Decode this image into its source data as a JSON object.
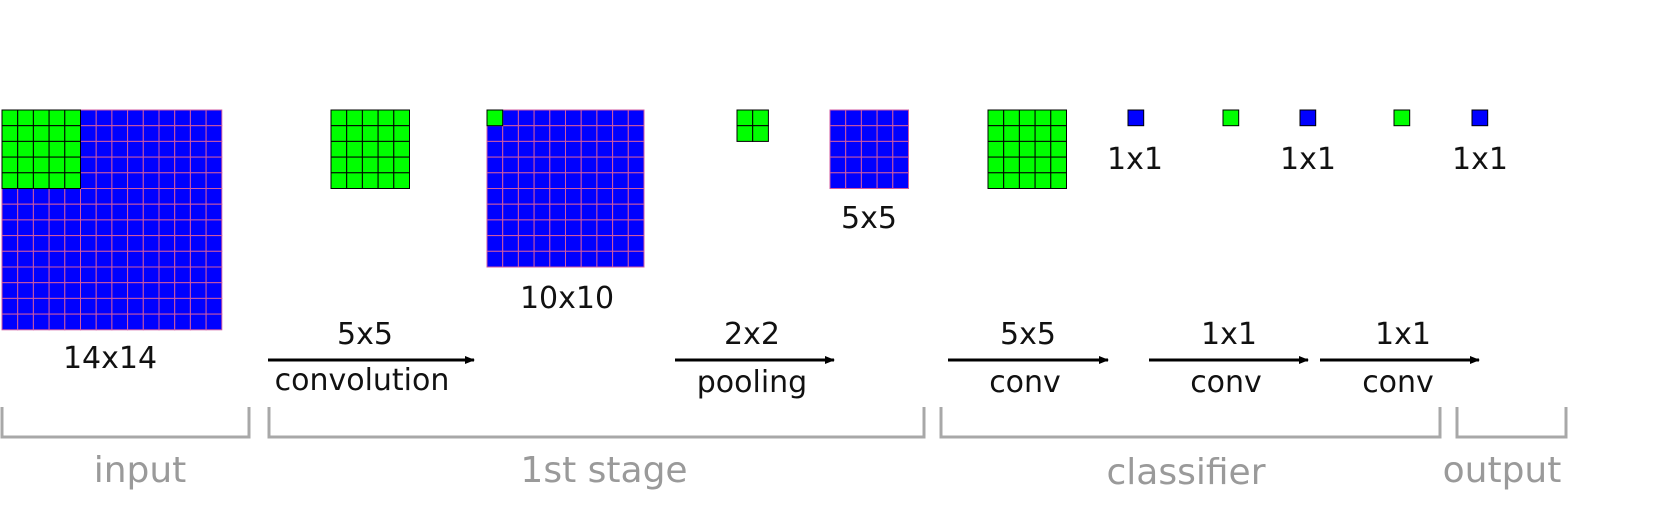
{
  "colors": {
    "feature_map": "#0000ff",
    "feature_grid": "#d05aa0",
    "kernel": "#00ff00",
    "kernel_grid": "#000000",
    "arrow": "#000000",
    "stage_label": "#9a9a9a"
  },
  "labels": {
    "input_size": "14x14",
    "conv1_out_size": "10x10",
    "pool_out_size": "5x5",
    "fc1_out": "1x1",
    "fc2_out": "1x1",
    "fc3_out": "1x1"
  },
  "operations": [
    {
      "size": "5x5",
      "name": "convolution"
    },
    {
      "size": "2x2",
      "name": "pooling"
    },
    {
      "size": "5x5",
      "name": "conv"
    },
    {
      "size": "1x1",
      "name": "conv"
    },
    {
      "size": "1x1",
      "name": "conv"
    }
  ],
  "stages": [
    "input",
    "1st stage",
    "classifier",
    "output"
  ],
  "grids": {
    "input": {
      "cells": 14,
      "overlay_cells": 5
    },
    "conv1_kernel": {
      "cells": 5
    },
    "conv1_output": {
      "cells": 10,
      "overlay_cells": 1
    },
    "pool_kernel": {
      "cells": 2
    },
    "pool_output": {
      "cells": 5
    },
    "conv_kernel": {
      "cells": 5
    },
    "fc_units": {
      "cells": 1
    }
  }
}
